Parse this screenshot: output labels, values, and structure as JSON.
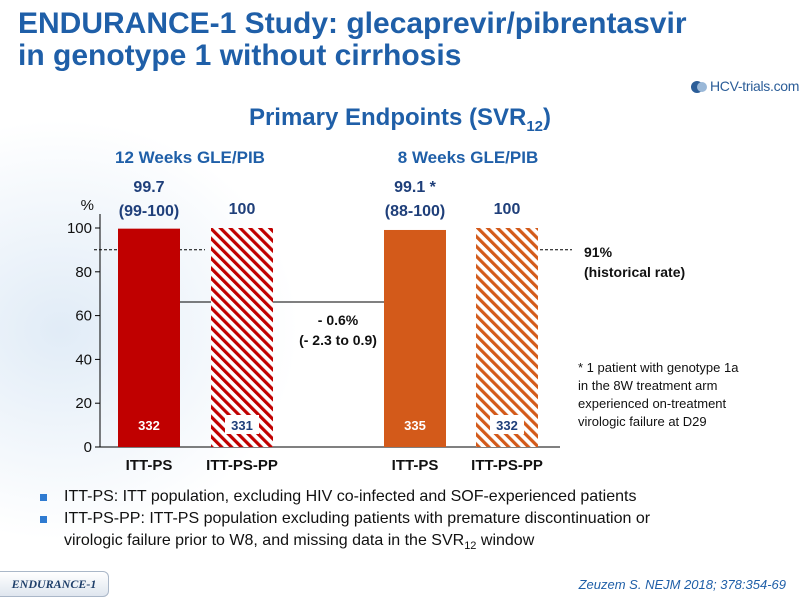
{
  "slide": {
    "title_line1": "ENDURANCE-1 Study: glecaprevir/pibrentasvir",
    "title_line2": "in genotype 1 without cirrhosis",
    "logo_text": "HCV-trials.com",
    "subtitle_main": "Primary Endpoints (SVR",
    "subtitle_sub": "12",
    "subtitle_close": ")"
  },
  "chart_data": {
    "type": "bar",
    "ylabel": "%",
    "ylim": [
      0,
      100
    ],
    "yticks": [
      0,
      20,
      40,
      60,
      80,
      100
    ],
    "groups": [
      {
        "label": "12 Weeks GLE/PIB"
      },
      {
        "label": "8 Weeks GLE/PIB"
      }
    ],
    "bars": [
      {
        "category": "ITT-PS",
        "group": "12 Weeks GLE/PIB",
        "value": 99.7,
        "value_label": "99.7",
        "ci_label": "(99-100)",
        "n": "332",
        "fill": "solid",
        "color": "#c00000"
      },
      {
        "category": "ITT-PS-PP",
        "group": "12 Weeks GLE/PIB",
        "value": 100,
        "value_label": "100",
        "ci_label": "",
        "n": "331",
        "fill": "hatched",
        "color": "#c00000"
      },
      {
        "category": "ITT-PS",
        "group": "8 Weeks GLE/PIB",
        "value": 99.1,
        "value_label": "99.1 *",
        "ci_label": "(88-100)",
        "n": "335",
        "fill": "solid",
        "color": "#d35a1a"
      },
      {
        "category": "ITT-PS-PP",
        "group": "8 Weeks GLE/PIB",
        "value": 100,
        "value_label": "100",
        "ci_label": "",
        "n": "332",
        "fill": "hatched",
        "color": "#d35a1a"
      }
    ],
    "reference_line": {
      "value": 91,
      "label_line1": "91%",
      "label_line2": "(historical rate)"
    },
    "difference": {
      "label_line1": "- 0.6%",
      "label_line2": "(- 2.3 to 0.9)"
    }
  },
  "footnote": {
    "line1": "* 1 patient with genotype 1a",
    "line2": "in the 8W treatment arm",
    "line3": "experienced on-treatment",
    "line4": "virologic failure at D29"
  },
  "bullets": {
    "b1": "ITT-PS: ITT population, excluding HIV co-infected and SOF-experienced patients",
    "b2_line1": "ITT-PS-PP: ITT-PS population excluding patients with premature discontinuation or",
    "b2_line2": "virologic failure prior to W8, and missing data in the SVR",
    "b2_sub": "12",
    "b2_end": " window"
  },
  "tag": "ENDURANCE-1",
  "citation": "Zeuzem S. NEJM 2018; 378:354-69",
  "colors": {
    "title": "#1f5fa8",
    "red": "#c00000",
    "orange": "#d35a1a",
    "bullet": "#2f7bd1"
  }
}
